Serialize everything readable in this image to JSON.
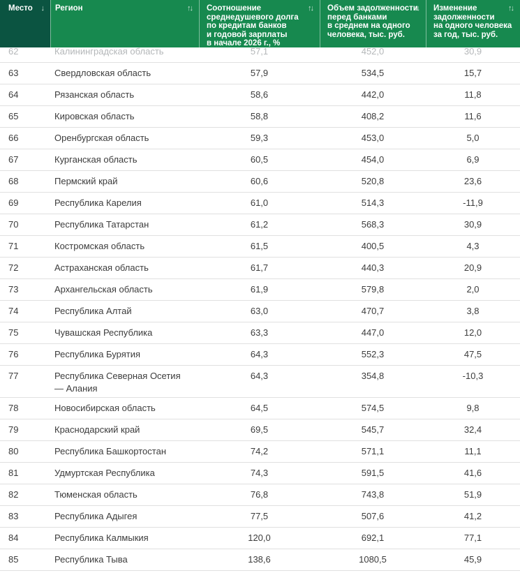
{
  "colors": {
    "header_dark_green": "#0b5441",
    "header_green": "#17894f",
    "header_text": "#ffffff",
    "sort_icon": "#cde4d8",
    "row_text": "#3c3c3c",
    "faded_row_text": "#b4b7b9",
    "divider": "#e0e0e0",
    "page_bg": "#ffffff"
  },
  "table": {
    "columns": [
      {
        "id": "rank",
        "label": "Место",
        "sort_icon": "↓"
      },
      {
        "id": "region",
        "label": "Регион",
        "sort_icon": "↑↓"
      },
      {
        "id": "ratio",
        "label": "Соотношение\nсреднедушевого долга\nпо кредитам банков\nи годовой зарплаты\nв начале 2026 г., %",
        "sort_icon": "↑↓"
      },
      {
        "id": "debt",
        "label": "Объем задолженности\nперед банками\nв среднем на одного\nчеловека, тыс. руб.",
        "sort_icon": "↑↓"
      },
      {
        "id": "change",
        "label": "Изменение\nзадолженности\nна одного человека\nза год, тыс. руб.",
        "sort_icon": "↑↓"
      }
    ],
    "partial_row": {
      "rank": "62",
      "region": "Калининградская область",
      "ratio": "57,1",
      "debt": "452,0",
      "change": "30,9"
    },
    "rows": [
      {
        "rank": "63",
        "region": "Свердловская область",
        "ratio": "57,9",
        "debt": "534,5",
        "change": "15,7"
      },
      {
        "rank": "64",
        "region": "Рязанская область",
        "ratio": "58,6",
        "debt": "442,0",
        "change": "11,8"
      },
      {
        "rank": "65",
        "region": "Кировская область",
        "ratio": "58,8",
        "debt": "408,2",
        "change": "11,6"
      },
      {
        "rank": "66",
        "region": "Оренбургская область",
        "ratio": "59,3",
        "debt": "453,0",
        "change": "5,0"
      },
      {
        "rank": "67",
        "region": "Курганская область",
        "ratio": "60,5",
        "debt": "454,0",
        "change": "6,9"
      },
      {
        "rank": "68",
        "region": "Пермский край",
        "ratio": "60,6",
        "debt": "520,8",
        "change": "23,6"
      },
      {
        "rank": "69",
        "region": "Республика Карелия",
        "ratio": "61,0",
        "debt": "514,3",
        "change": "-11,9"
      },
      {
        "rank": "70",
        "region": "Республика Татарстан",
        "ratio": "61,2",
        "debt": "568,3",
        "change": "30,9"
      },
      {
        "rank": "71",
        "region": "Костромская область",
        "ratio": "61,5",
        "debt": "400,5",
        "change": "4,3"
      },
      {
        "rank": "72",
        "region": "Астраханская область",
        "ratio": "61,7",
        "debt": "440,3",
        "change": "20,9"
      },
      {
        "rank": "73",
        "region": "Архангельская область",
        "ratio": "61,9",
        "debt": "579,8",
        "change": "2,0"
      },
      {
        "rank": "74",
        "region": "Республика Алтай",
        "ratio": "63,0",
        "debt": "470,7",
        "change": "3,8"
      },
      {
        "rank": "75",
        "region": "Чувашская Республика",
        "ratio": "63,3",
        "debt": "447,0",
        "change": "12,0"
      },
      {
        "rank": "76",
        "region": "Республика Бурятия",
        "ratio": "64,3",
        "debt": "552,3",
        "change": "47,5"
      },
      {
        "rank": "77",
        "region": "Республика Северная Осетия — Алания",
        "ratio": "64,3",
        "debt": "354,8",
        "change": "-10,3"
      },
      {
        "rank": "78",
        "region": "Новосибирская область",
        "ratio": "64,5",
        "debt": "574,5",
        "change": "9,8"
      },
      {
        "rank": "79",
        "region": "Краснодарский край",
        "ratio": "69,5",
        "debt": "545,7",
        "change": "32,4"
      },
      {
        "rank": "80",
        "region": "Республика Башкортостан",
        "ratio": "74,2",
        "debt": "571,1",
        "change": "11,1"
      },
      {
        "rank": "81",
        "region": "Удмуртская Республика",
        "ratio": "74,3",
        "debt": "591,5",
        "change": "41,6"
      },
      {
        "rank": "82",
        "region": "Тюменская область",
        "ratio": "76,8",
        "debt": "743,8",
        "change": "51,9"
      },
      {
        "rank": "83",
        "region": "Республика Адыгея",
        "ratio": "77,5",
        "debt": "507,6",
        "change": "41,2"
      },
      {
        "rank": "84",
        "region": "Республика Калмыкия",
        "ratio": "120,0",
        "debt": "692,1",
        "change": "77,1"
      },
      {
        "rank": "85",
        "region": "Республика Тыва",
        "ratio": "138,6",
        "debt": "1080,5",
        "change": "45,9"
      }
    ]
  }
}
